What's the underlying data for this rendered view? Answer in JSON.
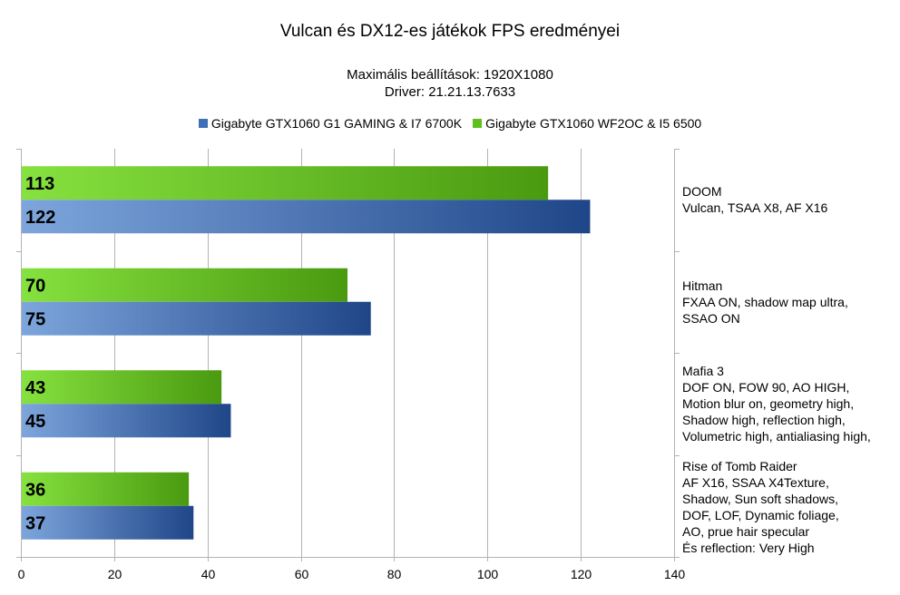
{
  "chart_data": {
    "type": "bar",
    "orientation": "horizontal",
    "title": "Vulcan és DX12-es játékok FPS eredményei",
    "subtitle": [
      "Maximális beállítások: 1920X1080",
      "Driver: 21.21.13.7633"
    ],
    "categories": [
      {
        "name": "DOOM",
        "details": [
          "Vulcan, TSAA X8, AF X16"
        ]
      },
      {
        "name": "Hitman",
        "details": [
          "FXAA ON, shadow map ultra,",
          "SSAO ON"
        ]
      },
      {
        "name": "Mafia 3",
        "details": [
          "DOF ON, FOW 90, AO HIGH,",
          "Motion blur on, geometry high,",
          "Shadow high, reflection high,",
          "Volumetric high, antialiasing high,"
        ]
      },
      {
        "name": "Rise of Tomb Raider",
        "details": [
          "AF X16, SSAA X4Texture,",
          "Shadow, Sun soft shadows,",
          "DOF, LOF, Dynamic foliage,",
          "AO, prue hair specular",
          "És reflection: Very High"
        ]
      }
    ],
    "series": [
      {
        "name": "Gigabyte GTX1060 G1 GAMING & I7 6700K",
        "color": "#3f6fb4",
        "values": [
          122,
          75,
          45,
          37
        ]
      },
      {
        "name": "Gigabyte GTX1060 WF2OC & I5 6500",
        "color": "#5fbf1e",
        "values": [
          113,
          70,
          43,
          36
        ]
      }
    ],
    "xlim": [
      0,
      140
    ],
    "xticks": [
      0,
      20,
      40,
      60,
      80,
      100,
      120,
      140
    ],
    "grid": true,
    "legend_position": "top",
    "data_labels": true
  }
}
